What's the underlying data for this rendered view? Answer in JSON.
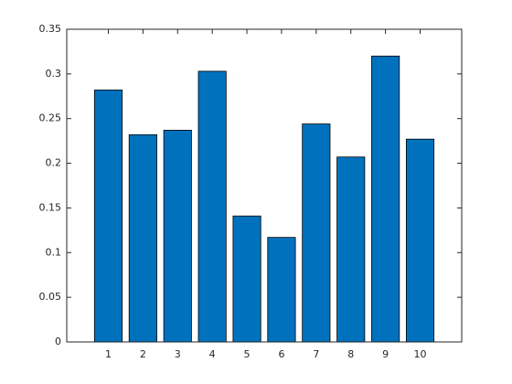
{
  "chart_data": {
    "type": "bar",
    "x": [
      1,
      2,
      3,
      4,
      5,
      6,
      7,
      8,
      9,
      10
    ],
    "values": [
      0.282,
      0.232,
      0.237,
      0.303,
      0.141,
      0.117,
      0.244,
      0.207,
      0.32,
      0.227
    ],
    "color": "#0072bd",
    "xlim": [
      -0.2,
      11.2
    ],
    "xticks": [
      1,
      2,
      3,
      4,
      5,
      6,
      7,
      8,
      9,
      10
    ],
    "ylim": [
      0,
      0.35
    ],
    "yticks": [
      0,
      0.05,
      0.1,
      0.15,
      0.2,
      0.25,
      0.3,
      0.35
    ],
    "grid": false
  }
}
